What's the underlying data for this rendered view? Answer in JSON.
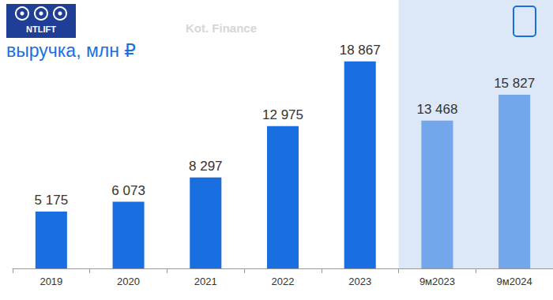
{
  "chart_data": {
    "type": "bar",
    "title": "выручка, млн ₽",
    "annotations": [
      "NTLIFT",
      "Kot. Finance"
    ],
    "categories": [
      "2019",
      "2020",
      "2021",
      "2022",
      "2023",
      "9м2023",
      "9м2024"
    ],
    "values": [
      5175,
      6073,
      8297,
      12975,
      18867,
      13468,
      15827
    ],
    "value_labels": [
      "5 175",
      "6 073",
      "8 297",
      "12 975",
      "18 867",
      "13 468",
      "15 827"
    ],
    "colors": [
      "#1a6fe0",
      "#1a6fe0",
      "#1a6fe0",
      "#1a6fe0",
      "#1a6fe0",
      "#74a6ea",
      "#74a6ea"
    ],
    "ylim": [
      0,
      20000
    ],
    "yticks": [
      0,
      20000
    ],
    "grid": false,
    "data_labels": true,
    "tick_labels": "x"
  }
}
